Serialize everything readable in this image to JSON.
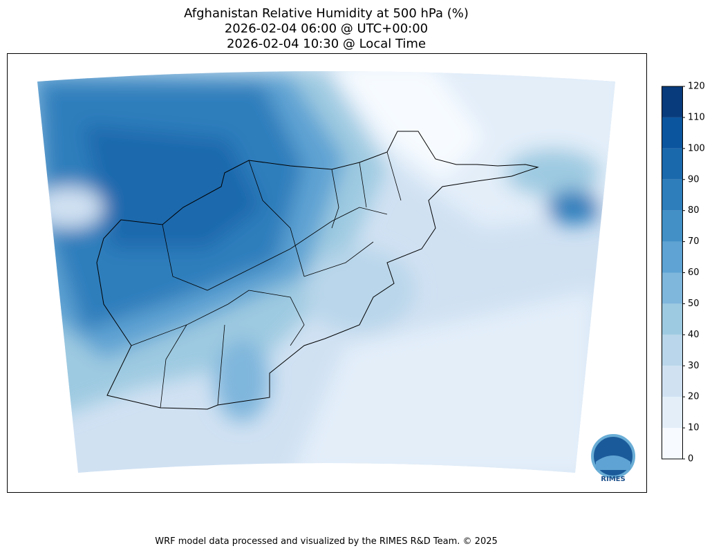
{
  "title": [
    "Afghanistan Relative Humidity at 500 hPa (%)",
    "2026-02-04 06:00 @ UTC+00:00",
    "2026-02-04 10:30 @ Local Time"
  ],
  "colorbar": {
    "ticks": [
      0,
      10,
      20,
      30,
      40,
      50,
      60,
      70,
      80,
      90,
      100,
      110,
      120
    ],
    "colors": [
      "#f7fbff",
      "#e3eef9",
      "#d0e1f2",
      "#b9d6ea",
      "#9ecae1",
      "#7fb6dc",
      "#5ea3d3",
      "#4290c6",
      "#2e7ebc",
      "#1b69ad",
      "#0b559f",
      "#083b7c"
    ]
  },
  "logo": "RIMES",
  "footer": "WRF model data processed and visualized by the RIMES R&D Team. © 2025"
}
